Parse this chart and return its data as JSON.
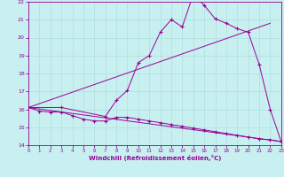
{
  "xlabel": "Windchill (Refroidissement éolien,°C)",
  "bg_color": "#c8f0f0",
  "line_color": "#990099",
  "grid_color": "#b0dede",
  "xmin": 0,
  "xmax": 23,
  "ymin": 14,
  "ymax": 22,
  "series1_x": [
    0,
    1,
    2,
    3,
    4,
    5,
    6,
    7,
    8,
    9,
    10,
    11,
    12,
    13,
    14,
    15,
    16,
    17,
    18,
    19,
    20,
    21,
    22,
    23
  ],
  "series1_y": [
    16.1,
    15.9,
    15.85,
    15.85,
    15.65,
    15.45,
    15.35,
    15.35,
    15.55,
    15.55,
    15.45,
    15.35,
    15.25,
    15.15,
    15.05,
    14.95,
    14.85,
    14.75,
    14.65,
    14.55,
    14.45,
    14.35,
    14.3,
    14.2
  ],
  "series2_x": [
    0,
    3,
    7,
    8,
    9,
    10,
    11,
    12,
    13,
    14,
    15,
    16,
    17,
    18,
    19,
    20,
    21,
    22,
    23
  ],
  "series2_y": [
    16.1,
    16.1,
    15.6,
    16.5,
    17.05,
    18.6,
    19.0,
    20.3,
    21.0,
    20.6,
    22.4,
    21.8,
    21.05,
    20.8,
    20.5,
    20.3,
    18.5,
    16.0,
    14.2
  ],
  "series3_x": [
    0,
    22
  ],
  "series3_y": [
    16.1,
    20.8
  ],
  "series4_x": [
    0,
    23
  ],
  "series4_y": [
    16.1,
    14.2
  ]
}
